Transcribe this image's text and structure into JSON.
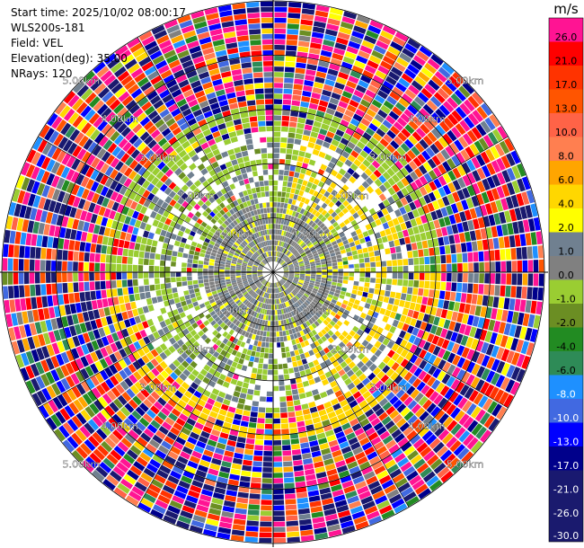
{
  "info": {
    "start_time": "Start time: 2025/10/02 08:00:17",
    "station": "WLS200s-181",
    "field": "Field: VEL",
    "elevation": "Elevation(deg): 35.00",
    "nrays": "NRays: 120"
  },
  "colorbar": {
    "unit": "m/s",
    "tick_labels": [
      "26.0",
      "21.0",
      "17.0",
      "13.0",
      "10.0",
      "8.0",
      "6.0",
      "4.0",
      "2.0",
      "1.0",
      "0.0",
      "-1.0",
      "-2.0",
      "-4.0",
      "-6.0",
      "-8.0",
      "-10.0",
      "-13.0",
      "-17.0",
      "-21.0",
      "-26.0",
      "-30.0"
    ],
    "colors": [
      "#ff1493",
      "#ff0000",
      "#ff3300",
      "#ff5500",
      "#ff6347",
      "#ff7f50",
      "#ffa500",
      "#ffd700",
      "#ffff00",
      "#708090",
      "#808080",
      "#9acd32",
      "#6b8e23",
      "#228b22",
      "#2e8b57",
      "#1e90ff",
      "#4169e1",
      "#0000ff",
      "#00008b",
      "#191970",
      "#1a1a6e"
    ]
  },
  "chart_data": {
    "type": "polar",
    "title": "",
    "field": "VEL",
    "elevation_deg": 35.0,
    "n_rays": 120,
    "range_unit": "km",
    "range_ring_labels": [
      "1.00km",
      "2.00km",
      "3.00km",
      "4.00km",
      "5.00km"
    ],
    "max_range_km": 5.0,
    "value_range": [
      -30,
      30
    ],
    "grid": true,
    "colorbar_placement": "right",
    "summary": "Near-zero velocities (gray) dominate within 2 km, a yellow band of positive values appears around 2-3 km on the east and north sides, green negative values on the southwest, and noisy multicolored values beyond about 3 km."
  }
}
